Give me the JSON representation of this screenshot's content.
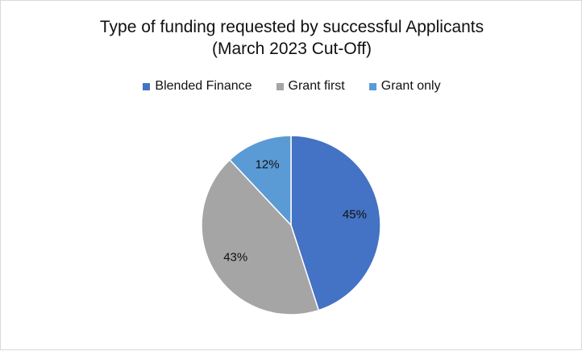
{
  "chart_data": {
    "type": "pie",
    "title": "Type of funding requested by successful Applicants",
    "subtitle": "(March 2023 Cut-Off)",
    "legend_position": "top",
    "categories": [
      "Blended Finance",
      "Grant first",
      "Grant only"
    ],
    "values": [
      45,
      43,
      12
    ],
    "labels": [
      "45%",
      "43%",
      "12%"
    ],
    "colors": [
      "#4472C4",
      "#A5A5A5",
      "#5B9BD5"
    ]
  }
}
